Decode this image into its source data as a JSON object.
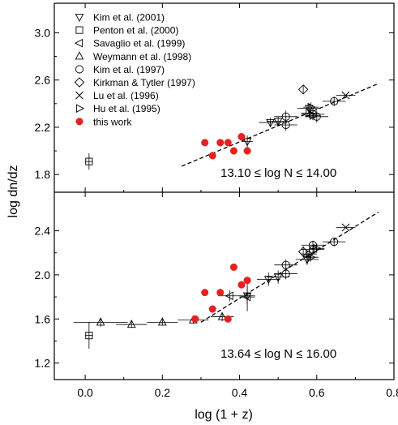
{
  "chart_data": [
    {
      "type": "scatter",
      "panel": "top",
      "xlabel": "log (1 + z)",
      "ylabel": "log dn/dz",
      "xlim": [
        -0.08,
        0.8
      ],
      "ylim": [
        1.65,
        3.25
      ],
      "yticks": [
        1.8,
        2.2,
        2.6,
        3.0
      ],
      "ytick_labels": [
        "1.8",
        "2.2",
        "2.6",
        "3.0"
      ],
      "range_label": "13.10 ≤ log N ≤ 14.00",
      "legend_position": "top-left",
      "legend": [
        {
          "marker": "triangle-down",
          "label": "Kim et al. (2001)"
        },
        {
          "marker": "square",
          "label": "Penton et al. (2000)"
        },
        {
          "marker": "triangle-left",
          "label": "Savaglio et al. (1999)"
        },
        {
          "marker": "triangle-up",
          "label": "Weymann et al. (1998)"
        },
        {
          "marker": "circle",
          "label": "Kim et al. (1997)"
        },
        {
          "marker": "diamond",
          "label": "Kirkman & Tytler (1997)"
        },
        {
          "marker": "x",
          "label": "Lu et al. (1996)"
        },
        {
          "marker": "triangle-right",
          "label": "Hu et al. (1995)"
        },
        {
          "marker": "filled-circle",
          "label": "this work"
        }
      ],
      "fit_line": {
        "style": "dashed",
        "x": [
          0.25,
          0.76
        ],
        "y": [
          1.87,
          2.57
        ]
      },
      "series": [
        {
          "marker": "square",
          "points": [
            {
              "x": 0.01,
              "y": 1.91,
              "xerr": 0.01,
              "yerr": 0.07
            }
          ]
        },
        {
          "marker": "triangle-down",
          "points": [
            {
              "x": 0.42,
              "y": 2.08,
              "xerr": 0.015,
              "yerr": 0.05
            },
            {
              "x": 0.48,
              "y": 2.24,
              "xerr": 0.03,
              "yerr": 0.04
            },
            {
              "x": 0.5,
              "y": 2.25,
              "xerr": 0.03,
              "yerr": 0.04
            },
            {
              "x": 0.58,
              "y": 2.36,
              "xerr": 0.03,
              "yerr": 0.04
            }
          ]
        },
        {
          "marker": "circle",
          "points": [
            {
              "x": 0.52,
              "y": 2.22,
              "xerr": 0.03,
              "yerr": 0.05
            },
            {
              "x": 0.52,
              "y": 2.29,
              "xerr": 0.03,
              "yerr": 0.05
            },
            {
              "x": 0.59,
              "y": 2.31,
              "xerr": 0.03,
              "yerr": 0.05
            },
            {
              "x": 0.6,
              "y": 2.29,
              "xerr": 0.03,
              "yerr": 0.05
            },
            {
              "x": 0.645,
              "y": 2.42,
              "xerr": 0.03,
              "yerr": 0.04
            }
          ]
        },
        {
          "marker": "diamond",
          "points": [
            {
              "x": 0.565,
              "y": 2.52,
              "xerr": 0.0,
              "yerr": 0.04
            }
          ]
        },
        {
          "marker": "x",
          "points": [
            {
              "x": 0.675,
              "y": 2.47,
              "xerr": 0.025,
              "yerr": 0.0
            }
          ]
        },
        {
          "marker": "triangle-right",
          "points": [
            {
              "x": 0.585,
              "y": 2.37,
              "xerr": 0.02,
              "yerr": 0.04
            },
            {
              "x": 0.58,
              "y": 2.32,
              "xerr": 0.02,
              "yerr": 0.04
            },
            {
              "x": 0.59,
              "y": 2.3,
              "xerr": 0.02,
              "yerr": 0.04
            }
          ]
        },
        {
          "marker": "filled-circle",
          "points": [
            {
              "x": 0.31,
              "y": 2.07
            },
            {
              "x": 0.33,
              "y": 1.96
            },
            {
              "x": 0.35,
              "y": 2.07
            },
            {
              "x": 0.37,
              "y": 2.07
            },
            {
              "x": 0.385,
              "y": 2.0
            },
            {
              "x": 0.405,
              "y": 2.12
            },
            {
              "x": 0.42,
              "y": 2.0
            }
          ]
        }
      ]
    },
    {
      "type": "scatter",
      "panel": "bottom",
      "xlabel": "log (1 + z)",
      "ylabel": "log dn/dz",
      "xlim": [
        -0.08,
        0.8
      ],
      "ylim": [
        1.05,
        2.75
      ],
      "xticks": [
        0.0,
        0.2,
        0.4,
        0.6,
        0.8
      ],
      "xtick_labels": [
        "0.0",
        "0.2",
        "0.4",
        "0.6",
        "0.8"
      ],
      "yticks": [
        1.2,
        1.6,
        2.0,
        2.4
      ],
      "ytick_labels": [
        "1.2",
        "1.6",
        "2.0",
        "2.4"
      ],
      "range_label": "13.64 ≤ log N ≤ 16.00",
      "fit_line": {
        "style": "dashed",
        "x": [
          0.3,
          0.76
        ],
        "y": [
          1.57,
          2.57
        ]
      },
      "series": [
        {
          "marker": "square",
          "points": [
            {
              "x": 0.01,
              "y": 1.45,
              "xerr": 0.01,
              "yerr": 0.12
            }
          ]
        },
        {
          "marker": "triangle-up",
          "points": [
            {
              "x": 0.04,
              "y": 1.57,
              "xerr": 0.07,
              "yerr": 0.04
            },
            {
              "x": 0.12,
              "y": 1.55,
              "xerr": 0.04,
              "yerr": 0.03
            },
            {
              "x": 0.2,
              "y": 1.57,
              "xerr": 0.04,
              "yerr": 0.03
            },
            {
              "x": 0.28,
              "y": 1.59,
              "xerr": 0.04,
              "yerr": 0.03
            },
            {
              "x": 0.355,
              "y": 1.62,
              "xerr": 0.03,
              "yerr": 0.04
            }
          ]
        },
        {
          "marker": "triangle-left",
          "points": [
            {
              "x": 0.375,
              "y": 1.81,
              "xerr": 0.03,
              "yerr": 0.05
            },
            {
              "x": 0.42,
              "y": 1.8,
              "xerr": 0.02,
              "yerr": 0.13
            }
          ]
        },
        {
          "marker": "triangle-down",
          "points": [
            {
              "x": 0.42,
              "y": 1.81,
              "xerr": 0.02,
              "yerr": 0.08
            },
            {
              "x": 0.475,
              "y": 1.96,
              "xerr": 0.03,
              "yerr": 0.06
            },
            {
              "x": 0.5,
              "y": 1.98,
              "xerr": 0.03,
              "yerr": 0.06
            },
            {
              "x": 0.575,
              "y": 2.14,
              "xerr": 0.03,
              "yerr": 0.05
            }
          ]
        },
        {
          "marker": "circle",
          "points": [
            {
              "x": 0.52,
              "y": 2.01,
              "xerr": 0.03,
              "yerr": 0.05
            },
            {
              "x": 0.52,
              "y": 2.09,
              "xerr": 0.03,
              "yerr": 0.05
            },
            {
              "x": 0.59,
              "y": 2.27,
              "xerr": 0.03,
              "yerr": 0.04
            },
            {
              "x": 0.59,
              "y": 2.23,
              "xerr": 0.03,
              "yerr": 0.04
            },
            {
              "x": 0.645,
              "y": 2.3,
              "xerr": 0.03,
              "yerr": 0.04
            }
          ]
        },
        {
          "marker": "diamond",
          "points": [
            {
              "x": 0.565,
              "y": 2.21,
              "xerr": 0.0,
              "yerr": 0.05
            }
          ]
        },
        {
          "marker": "x",
          "points": [
            {
              "x": 0.675,
              "y": 2.43,
              "xerr": 0.025,
              "yerr": 0.0
            }
          ]
        },
        {
          "marker": "triangle-right",
          "points": [
            {
              "x": 0.58,
              "y": 2.19,
              "xerr": 0.02,
              "yerr": 0.04
            },
            {
              "x": 0.585,
              "y": 2.16,
              "xerr": 0.02,
              "yerr": 0.04
            },
            {
              "x": 0.6,
              "y": 2.24,
              "xerr": 0.02,
              "yerr": 0.04
            }
          ]
        },
        {
          "marker": "filled-circle",
          "points": [
            {
              "x": 0.285,
              "y": 1.6
            },
            {
              "x": 0.31,
              "y": 1.84
            },
            {
              "x": 0.33,
              "y": 1.69
            },
            {
              "x": 0.35,
              "y": 1.84
            },
            {
              "x": 0.37,
              "y": 1.6
            },
            {
              "x": 0.385,
              "y": 2.07
            },
            {
              "x": 0.405,
              "y": 1.91
            },
            {
              "x": 0.42,
              "y": 1.95
            }
          ]
        }
      ]
    }
  ],
  "colors": {
    "axes": "#000000",
    "open_markers": "#000000",
    "this_work": "#e8201f"
  }
}
